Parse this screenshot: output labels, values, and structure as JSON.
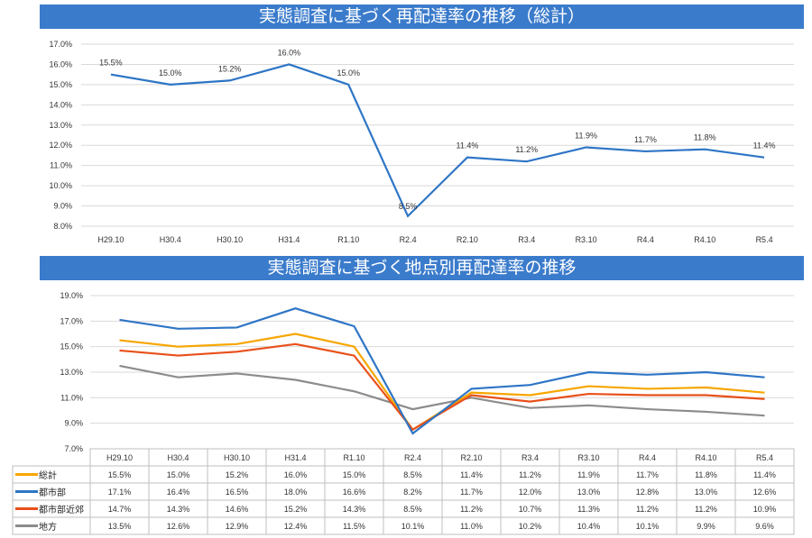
{
  "chart_data": [
    {
      "type": "line",
      "title": "実態調査に基づく再配達率の推移（総計）",
      "categories": [
        "H29.10",
        "H30.4",
        "H30.10",
        "H31.4",
        "R1.10",
        "R2.4",
        "R2.10",
        "R3.4",
        "R3.10",
        "R4.4",
        "R4.10",
        "R5.4"
      ],
      "series": [
        {
          "name": "総計",
          "color": "#2e75c6",
          "values": [
            15.5,
            15.0,
            15.2,
            16.0,
            15.0,
            8.5,
            11.4,
            11.2,
            11.9,
            11.7,
            11.8,
            11.4
          ]
        }
      ],
      "data_labels": [
        "15.5%",
        "15.0%",
        "15.2%",
        "16.0%",
        "15.0%",
        "8.5%",
        "11.4%",
        "11.2%",
        "11.9%",
        "11.7%",
        "11.8%",
        "11.4%"
      ],
      "yticks": [
        "8.0%",
        "9.0%",
        "10.0%",
        "11.0%",
        "12.0%",
        "13.0%",
        "14.0%",
        "15.0%",
        "16.0%",
        "17.0%"
      ],
      "ylim": [
        8,
        17
      ],
      "grid": true
    },
    {
      "type": "line",
      "title": "実態調査に基づく地点別再配達率の推移",
      "categories": [
        "H29.10",
        "H30.4",
        "H30.10",
        "H31.4",
        "R1.10",
        "R2.4",
        "R2.10",
        "R3.4",
        "R3.10",
        "R4.4",
        "R4.10",
        "R5.4"
      ],
      "series": [
        {
          "name": "総計",
          "color": "#f7a600",
          "values": [
            15.5,
            15.0,
            15.2,
            16.0,
            15.0,
            8.5,
            11.4,
            11.2,
            11.9,
            11.7,
            11.8,
            11.4
          ],
          "labels": [
            "15.5%",
            "15.0%",
            "15.2%",
            "16.0%",
            "15.0%",
            "8.5%",
            "11.4%",
            "11.2%",
            "11.9%",
            "11.7%",
            "11.8%",
            "11.4%"
          ]
        },
        {
          "name": "都市部",
          "color": "#2e75c6",
          "values": [
            17.1,
            16.4,
            16.5,
            18.0,
            16.6,
            8.2,
            11.7,
            12.0,
            13.0,
            12.8,
            13.0,
            12.6
          ],
          "labels": [
            "17.1%",
            "16.4%",
            "16.5%",
            "18.0%",
            "16.6%",
            "8.2%",
            "11.7%",
            "12.0%",
            "13.0%",
            "12.8%",
            "13.0%",
            "12.6%"
          ]
        },
        {
          "name": "都市部近郊",
          "color": "#e8501a",
          "values": [
            14.7,
            14.3,
            14.6,
            15.2,
            14.3,
            8.5,
            11.2,
            10.7,
            11.3,
            11.2,
            11.2,
            10.9
          ],
          "labels": [
            "14.7%",
            "14.3%",
            "14.6%",
            "15.2%",
            "14.3%",
            "8.5%",
            "11.2%",
            "10.7%",
            "11.3%",
            "11.2%",
            "11.2%",
            "10.9%"
          ]
        },
        {
          "name": "地方",
          "color": "#8c8c8c",
          "values": [
            13.5,
            12.6,
            12.9,
            12.4,
            11.5,
            10.1,
            11.0,
            10.2,
            10.4,
            10.1,
            9.9,
            9.6
          ],
          "labels": [
            "13.5%",
            "12.6%",
            "12.9%",
            "12.4%",
            "11.5%",
            "10.1%",
            "11.0%",
            "10.2%",
            "10.4%",
            "10.1%",
            "9.9%",
            "9.6%"
          ]
        }
      ],
      "yticks": [
        "7.0%",
        "9.0%",
        "11.0%",
        "13.0%",
        "15.0%",
        "17.0%",
        "19.0%"
      ],
      "ylim": [
        7,
        19
      ],
      "grid": true,
      "legend": "data-table"
    }
  ]
}
